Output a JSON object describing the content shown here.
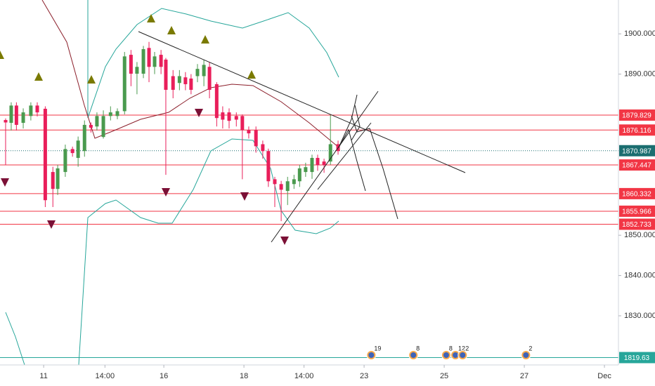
{
  "chart_data": {
    "type": "candlestick",
    "up_color": "#4a9a4e",
    "down_color": "#e91e5a",
    "x": [
      -0.95,
      -0.81,
      -0.68,
      -0.51,
      -0.32,
      -0.16,
      0.04,
      0.23,
      0.35,
      0.54,
      0.72,
      0.86,
      1.02,
      1.18,
      1.33,
      1.49,
      1.67,
      1.84,
      2.02,
      2.18,
      2.33,
      2.49,
      2.63,
      2.77,
      2.93,
      3.05,
      3.23,
      3.39,
      3.54,
      3.68,
      3.84,
      4.0,
      4.14,
      4.32,
      4.47,
      4.63,
      4.81,
      4.96,
      5.12,
      5.3,
      5.47,
      5.61,
      5.77,
      5.93,
      6.09,
      6.25,
      6.39,
      6.54,
      6.7,
      6.84,
      7.0,
      7.16,
      7.35
    ],
    "open": [
      1878.6,
      1877.9,
      1882.2,
      1877.9,
      1879.6,
      1882.2,
      1881.4,
      1865.7,
      1861.5,
      1865.7,
      1871.4,
      1869.2,
      1870.9,
      1877.4,
      1877.0,
      1874.4,
      1879.6,
      1879.6,
      1880.8,
      1894.8,
      1890.1,
      1890.1,
      1896.5,
      1891.8,
      1894.8,
      1893.6,
      1889.5,
      1887.8,
      1889.2,
      1888.9,
      1889.5,
      1889.5,
      1891.8,
      1887.5,
      1880.5,
      1880.5,
      1879.6,
      1879.6,
      1876.1,
      1876.1,
      1872.6,
      1870.9,
      1863.9,
      1862.7,
      1861.0,
      1862.7,
      1863.4,
      1865.7,
      1865.7,
      1869.2,
      1868.3,
      1868.3,
      1872.6
    ],
    "high": [
      1879.0,
      1883.0,
      1883.0,
      1881.5,
      1883.0,
      1883.0,
      1882.0,
      1867.0,
      1867.5,
      1872.5,
      1872.0,
      1874.5,
      1878.5,
      1878.0,
      1880.5,
      1881.0,
      1882.0,
      1881.5,
      1895.5,
      1896.0,
      1893.0,
      1897.0,
      1898.0,
      1895.5,
      1896.0,
      1894.0,
      1891.0,
      1891.0,
      1890.5,
      1890.0,
      1892.5,
      1893.5,
      1893.0,
      1888.0,
      1882.0,
      1881.5,
      1880.5,
      1880.0,
      1877.0,
      1877.0,
      1873.5,
      1871.5,
      1864.5,
      1863.5,
      1864.5,
      1865.0,
      1867.5,
      1868.0,
      1870.0,
      1870.0,
      1869.0,
      1879.8,
      1873.5
    ],
    "low": [
      1867.4,
      1876.0,
      1876.0,
      1876.5,
      1878.5,
      1879.5,
      1857.0,
      1857.0,
      1860.0,
      1864.5,
      1869.5,
      1867.0,
      1869.5,
      1875.5,
      1876.0,
      1874.0,
      1878.5,
      1878.8,
      1880.0,
      1887.0,
      1885.0,
      1889.0,
      1888.0,
      1890.0,
      1890.0,
      1865.0,
      1884.0,
      1886.0,
      1886.0,
      1885.0,
      1888.0,
      1887.0,
      1884.0,
      1877.0,
      1876.5,
      1876.5,
      1877.0,
      1863.9,
      1874.0,
      1870.5,
      1869.0,
      1862.0,
      1857.0,
      1853.5,
      1857.5,
      1861.5,
      1862.0,
      1864.5,
      1864.0,
      1866.0,
      1865.5,
      1867.5,
      1870.0
    ],
    "close": [
      1878.0,
      1882.2,
      1877.4,
      1880.5,
      1882.2,
      1880.5,
      1858.7,
      1861.5,
      1866.6,
      1871.4,
      1870.4,
      1873.5,
      1877.4,
      1876.7,
      1879.6,
      1879.6,
      1880.5,
      1880.8,
      1894.4,
      1890.1,
      1891.8,
      1896.2,
      1891.8,
      1894.4,
      1891.8,
      1886.1,
      1886.1,
      1889.5,
      1887.5,
      1886.1,
      1891.3,
      1892.3,
      1886.1,
      1879.1,
      1878.7,
      1878.4,
      1878.7,
      1876.1,
      1875.3,
      1872.1,
      1870.9,
      1863.4,
      1862.7,
      1861.3,
      1863.4,
      1863.9,
      1866.6,
      1866.9,
      1869.2,
      1867.4,
      1867.4,
      1872.6,
      1870.9
    ],
    "xlim": [
      -1.09,
      14.35
    ],
    "xticks": [
      {
        "value": 0,
        "label": "11"
      },
      {
        "value": 1.53,
        "label": "14:00"
      },
      {
        "value": 3,
        "label": "16"
      },
      {
        "value": 5,
        "label": "18"
      },
      {
        "value": 6.5,
        "label": "14:00"
      },
      {
        "value": 8,
        "label": "23"
      },
      {
        "value": 10,
        "label": "25"
      },
      {
        "value": 12,
        "label": "27"
      },
      {
        "value": 14,
        "label": "Dec"
      }
    ],
    "ylim": [
      1817.8,
      1908.4
    ],
    "yticks": [
      {
        "value": 1900,
        "label": "1900.000"
      },
      {
        "value": 1890,
        "label": "1890.000"
      },
      {
        "value": 1850,
        "label": "1850.000"
      },
      {
        "value": 1840,
        "label": "1840.000"
      },
      {
        "value": 1830,
        "label": "1830.000"
      }
    ],
    "grid": true,
    "levels": [
      {
        "value": 1879.829,
        "color": "#f23645",
        "dash": false
      },
      {
        "value": 1876.116,
        "color": "#f23645",
        "dash": false
      },
      {
        "value": 1870.987,
        "color": "#1b6e70",
        "dash": true
      },
      {
        "value": 1867.447,
        "color": "#f23645",
        "dash": false
      },
      {
        "value": 1860.332,
        "color": "#f23645",
        "dash": false
      },
      {
        "value": 1855.966,
        "color": "#f23645",
        "dash": false
      },
      {
        "value": 1852.733,
        "color": "#f23645",
        "dash": false
      },
      {
        "value": 1819.63,
        "color": "#26a69a",
        "dash": false
      }
    ],
    "events": [
      {
        "x": 8.18,
        "count": 19
      },
      {
        "x": 9.23,
        "count": 8
      },
      {
        "x": 10.05,
        "count": 8
      },
      {
        "x": 10.28,
        "count": 12
      },
      {
        "x": 10.46,
        "count": 2
      },
      {
        "x": 12.04,
        "count": 2
      }
    ]
  }
}
